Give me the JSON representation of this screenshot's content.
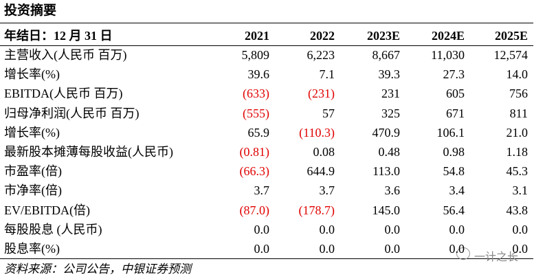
{
  "header": {
    "title": "投资摘要"
  },
  "table": {
    "columns": [
      "年结日：12 月 31 日",
      "2021",
      "2022",
      "2023E",
      "2024E",
      "2025E"
    ],
    "rows": [
      [
        "主营收入(人民币 百万)",
        "5,809",
        "6,223",
        "8,667",
        "11,030",
        "12,574"
      ],
      [
        "增长率(%)",
        "39.6",
        "7.1",
        "39.3",
        "27.3",
        "14.0"
      ],
      [
        "EBITDA(人民币 百万)",
        "(633)",
        "(231)",
        "231",
        "605",
        "756"
      ],
      [
        "归母净利润(人民币 百万)",
        "(555)",
        "57",
        "325",
        "671",
        "811"
      ],
      [
        "增长率(%)",
        "65.9",
        "(110.3)",
        "470.9",
        "106.1",
        "21.0"
      ],
      [
        "最新股本摊薄每股收益(人民币)",
        "(0.81)",
        "0.08",
        "0.48",
        "0.98",
        "1.18"
      ],
      [
        "市盈率(倍)",
        "(66.3)",
        "644.9",
        "113.0",
        "54.8",
        "45.3"
      ],
      [
        "市净率(倍)",
        "3.7",
        "3.7",
        "3.6",
        "3.4",
        "3.1"
      ],
      [
        "EV/EBITDA(倍)",
        "(87.0)",
        "(178.7)",
        "145.0",
        "56.4",
        "43.8"
      ],
      [
        "每股股息 (人民币)",
        "0.0",
        "0.0",
        "0.0",
        "0.0",
        "0.0"
      ],
      [
        "股息率(%)",
        "0.0",
        "0.0",
        "0.0",
        "0.0",
        "0.0"
      ]
    ]
  },
  "footer": {
    "source": "资料来源：公司公告，中银证券预测"
  },
  "watermark": {
    "text": "一计之长"
  }
}
